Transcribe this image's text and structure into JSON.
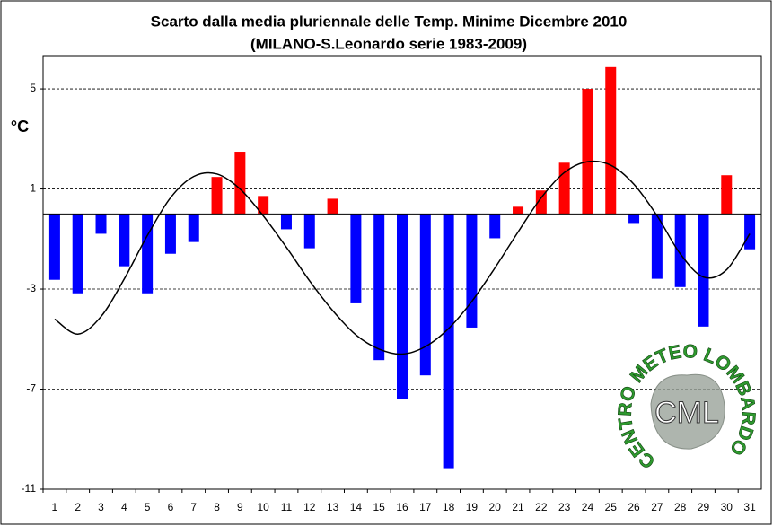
{
  "chart_data": {
    "type": "bar",
    "title": "Scarto dalla media pluriennale delle Temp. Minime Dicembre 2010",
    "subtitle": "(MILANO-S.Leonardo serie 1983-2009)",
    "y_label": "°C",
    "logo_text": "CENTRO METEO LOMBARDO",
    "logo_initials": "CML",
    "categories": [
      "1",
      "2",
      "3",
      "4",
      "5",
      "6",
      "7",
      "8",
      "9",
      "10",
      "11",
      "12",
      "13",
      "14",
      "15",
      "16",
      "17",
      "18",
      "19",
      "20",
      "21",
      "22",
      "23",
      "24",
      "25",
      "26",
      "27",
      "28",
      "29",
      "30",
      "31"
    ],
    "values": [
      -2.63,
      -3.17,
      -0.79,
      -2.09,
      -3.17,
      -1.59,
      -1.12,
      1.48,
      2.49,
      0.72,
      -0.61,
      -1.37,
      0.61,
      -3.57,
      -5.84,
      -7.39,
      -6.45,
      -10.16,
      -4.54,
      -0.97,
      0.29,
      0.94,
      2.05,
      5.0,
      5.87,
      -0.36,
      -2.59,
      -2.92,
      -4.5,
      1.55,
      -1.41
    ],
    "positive_color": "#ff0000",
    "negative_color": "#0000ff",
    "trend": [
      -4.2,
      -4.8,
      -4.1,
      -2.6,
      -0.86,
      0.65,
      1.5,
      1.6,
      1.0,
      -0.07,
      -1.33,
      -2.67,
      -3.86,
      -4.83,
      -5.4,
      -5.6,
      -5.3,
      -4.58,
      -3.5,
      -2.16,
      -0.72,
      0.65,
      1.66,
      2.09,
      1.95,
      1.19,
      -0.07,
      -1.59,
      -2.52,
      -2.23,
      -0.79
    ],
    "trend_color": "#000000",
    "ylim": [
      -11,
      6.33
    ],
    "yticks": [
      5,
      1,
      -3,
      -7,
      -11
    ],
    "grid": true
  }
}
